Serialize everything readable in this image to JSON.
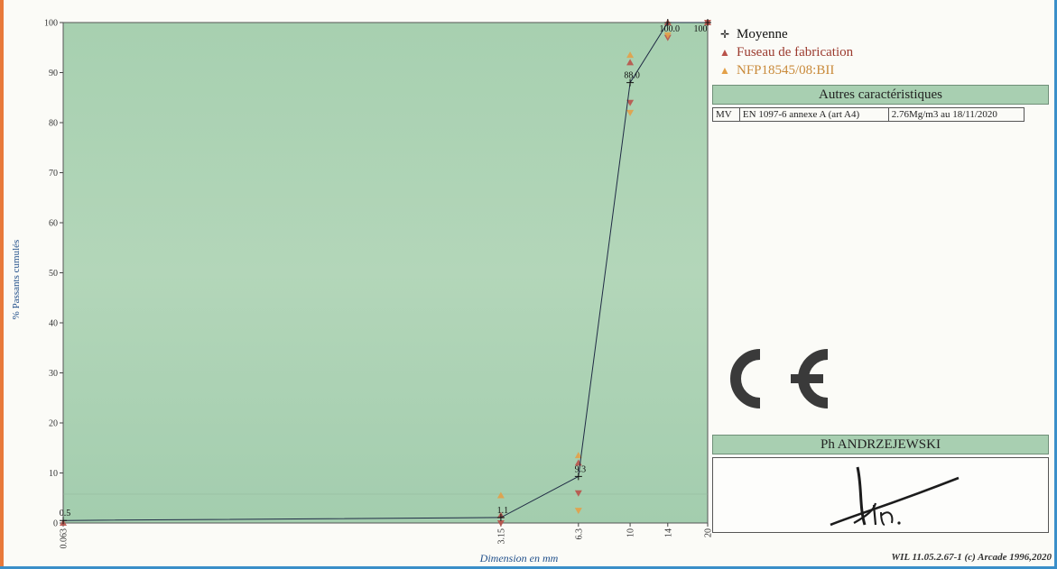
{
  "chart_data": {
    "type": "line",
    "xlabel": "Dimension en mm",
    "ylabel": "% Passants cumulés",
    "x_scale": "log",
    "xticks": [
      "0.063",
      "3.15",
      "6.3",
      "10",
      "14",
      "20"
    ],
    "xtick_values": [
      0.063,
      3.15,
      6.3,
      10,
      14,
      20
    ],
    "yticks": [
      "0",
      "10",
      "20",
      "30",
      "40",
      "50",
      "60",
      "70",
      "80",
      "90",
      "100"
    ],
    "ylim": [
      0,
      100
    ],
    "grid": false,
    "legend_position": "right",
    "series": [
      {
        "name": "Moyenne",
        "marker": "plus",
        "color": "#1f2a44",
        "x": [
          0.063,
          3.15,
          6.3,
          10,
          14,
          20
        ],
        "y": [
          0.5,
          1.1,
          9.3,
          88.0,
          100.0,
          100.0
        ],
        "labels": [
          "0.5",
          "1.1",
          "9.3",
          "88.0",
          "100.0",
          "100"
        ]
      },
      {
        "name": "Fuseau de fabrication",
        "marker": "triangle",
        "color": "#b9524a",
        "x": [
          0.063,
          3.15,
          3.15,
          6.3,
          6.3,
          10,
          10,
          14,
          14,
          20,
          20
        ],
        "y": [
          0,
          0,
          1.5,
          6,
          12,
          84,
          92,
          97,
          100,
          100,
          100
        ]
      },
      {
        "name": "NFP18545/08:BII",
        "marker": "triangle",
        "color": "#e3a048",
        "x": [
          3.15,
          6.3,
          6.3,
          10,
          10,
          14
        ],
        "y": [
          5.5,
          2.5,
          13.5,
          82,
          93.5,
          97.5
        ]
      }
    ]
  },
  "panel": {
    "char_title": "Autres caractéristiques",
    "char_row": [
      "MV",
      "EN 1097-6 annexe A (art A4)",
      "2.76Mg/m3  au 18/11/2020"
    ],
    "signer": "Ph ANDRZEJEWSKI",
    "signature_text": "Aph."
  },
  "footer": "WIL 11.05.2.67-1 (c) Arcade 1996,2020",
  "colors": {
    "plot_bg": "#a9d1b1",
    "line": "#1f2a44",
    "panel_header": "#a8cfb1"
  }
}
